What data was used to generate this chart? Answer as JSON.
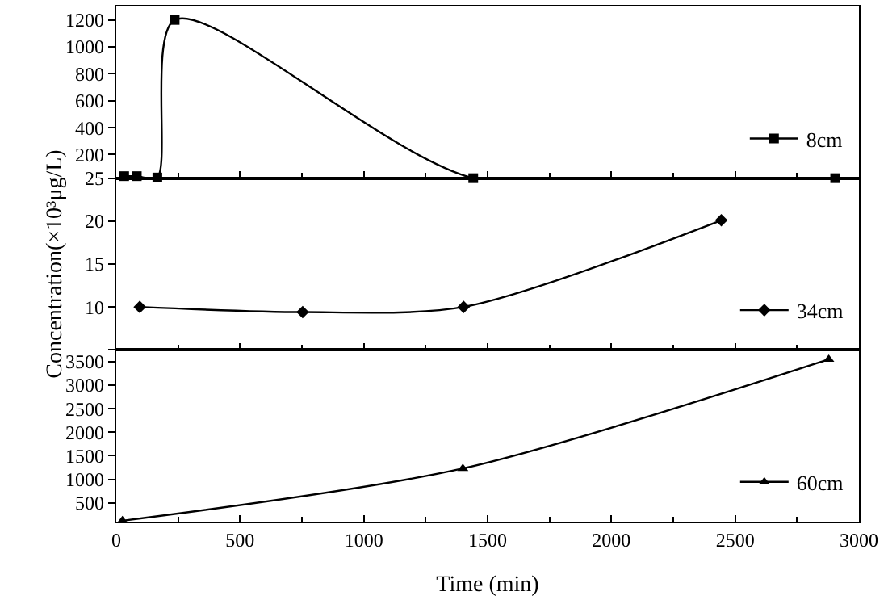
{
  "chart_data": [
    {
      "type": "line",
      "x": [
        32,
        83,
        166,
        236,
        1442,
        2904
      ],
      "series": [
        {
          "name": "8cm",
          "color": "#000000",
          "values": [
            40,
            40,
            30,
            1200,
            25,
            25
          ]
        }
      ],
      "xlim": [
        0,
        3000
      ],
      "xticks": [
        0,
        500,
        1000,
        1500,
        2000,
        2500,
        3000
      ],
      "ylim": [
        25,
        1300
      ],
      "yticks": [
        25,
        200,
        400,
        600,
        800,
        1000,
        1200
      ],
      "tick_labels": "y",
      "marker": "square",
      "line_style": "solid",
      "legend": "bottom right"
    },
    {
      "type": "line",
      "x": [
        95,
        753,
        1403,
        2444
      ],
      "series": [
        {
          "name": "34cm",
          "color": "#000000",
          "values": [
            10,
            9.4,
            10,
            20.1
          ]
        }
      ],
      "ylabel": "Concentration(×10³μg/L)",
      "xlim": [
        0,
        3000
      ],
      "xticks": [
        0,
        500,
        1000,
        1500,
        2000,
        2500,
        3000
      ],
      "ylim": [
        5,
        25
      ],
      "yticks": [
        {
          "value": 5,
          "label": null
        },
        10,
        15,
        20,
        {
          "value": 25,
          "label": null
        }
      ],
      "tick_labels": "y",
      "marker": "diamond",
      "line_style": "solid",
      "legend": "bottom right"
    },
    {
      "type": "line",
      "x": [
        25,
        1400,
        2878
      ],
      "series": [
        {
          "name": "60cm",
          "color": "#000000",
          "values": [
            120,
            1230,
            3550
          ]
        }
      ],
      "xlabel": "Time (min)",
      "xlim": [
        0,
        3000
      ],
      "xticks": [
        0,
        500,
        1000,
        1500,
        2000,
        2500,
        3000
      ],
      "ylim": [
        100,
        3750
      ],
      "yticks": [
        500,
        1000,
        1500,
        2000,
        2500,
        3000,
        3500
      ],
      "marker": "triangle-up",
      "line_style": "solid",
      "legend": "bottom right"
    }
  ]
}
